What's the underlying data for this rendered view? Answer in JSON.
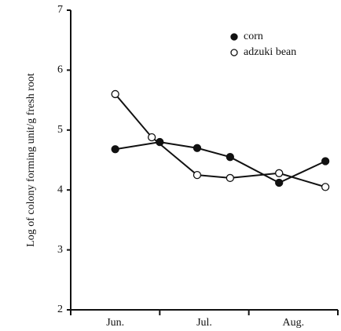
{
  "chart_data": {
    "type": "line",
    "y_label": "Log of colony forming unit/g fresh root",
    "categories": [
      "Jun.",
      "Jul.",
      "Aug."
    ],
    "xlim": [
      0,
      3
    ],
    "xticks": [
      0,
      1,
      2,
      3
    ],
    "ylim": [
      2,
      7
    ],
    "yticks": [
      2,
      3,
      4,
      5,
      6,
      7
    ],
    "legend": "upper right",
    "series": [
      {
        "name": "corn",
        "color": "#111111",
        "marker": "filled",
        "x": [
          0.5,
          1.0,
          1.42,
          1.79,
          2.34,
          2.86
        ],
        "values": [
          4.68,
          4.8,
          4.7,
          4.55,
          4.12,
          4.48
        ]
      },
      {
        "name": "adzuki bean",
        "color": "#111111",
        "marker": "open",
        "x": [
          0.5,
          0.91,
          1.42,
          1.79,
          2.34,
          2.86
        ],
        "values": [
          5.6,
          4.88,
          4.25,
          4.2,
          4.28,
          4.05
        ]
      }
    ]
  }
}
